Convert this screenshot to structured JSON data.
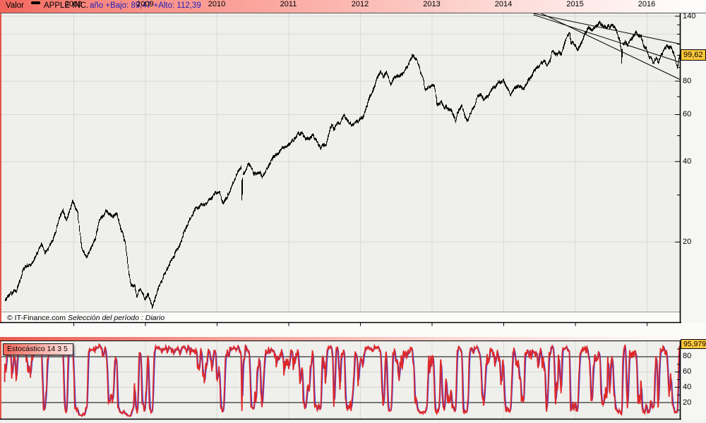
{
  "header": {
    "valor_label": "Valor",
    "instrument": "APPLE INC.",
    "year_range": "año +Bajo: 89,47 +Alto: 112,39"
  },
  "main_chart": {
    "price_label": "99,62",
    "copyright": "© IT-Finance.com",
    "period_label": "Selección del período : Diario",
    "y_axis_labels": [
      {
        "value": 140,
        "text": "140"
      },
      {
        "value": 80,
        "text": "80"
      },
      {
        "value": 60,
        "text": "60"
      },
      {
        "value": 40,
        "text": "40"
      },
      {
        "value": 20,
        "text": "20"
      }
    ]
  },
  "x_axis": {
    "years": [
      "2008",
      "2009",
      "2010",
      "2011",
      "2012",
      "2013",
      "2014",
      "2015",
      "2016"
    ]
  },
  "stochastic": {
    "legend": "Estocástico 14 3 5",
    "value_label": "95,979",
    "y_axis_labels": [
      {
        "value": 80,
        "text": "80"
      },
      {
        "value": 60,
        "text": "60"
      },
      {
        "value": 40,
        "text": "40"
      },
      {
        "value": 20,
        "text": "20"
      }
    ]
  },
  "colors": {
    "price": "#000000",
    "stoch_k_red": "#e02828",
    "stoch_d_blue": "#3535d6",
    "grid": "#d8d8d6",
    "grid_light": "#d2d2d0",
    "tag_bg": "#ffc83c",
    "border": "#000000"
  },
  "chart_data": [
    {
      "type": "line",
      "name": "APPLE INC. daily price (split-adjusted)",
      "period": "Diario",
      "y_scale": "log",
      "ylim": [
        10,
        150
      ],
      "y_grid_levels": [
        20,
        40,
        60,
        80,
        100,
        120,
        140
      ],
      "y_minor_ticks": [
        130,
        120,
        110,
        100,
        90,
        70,
        50,
        30
      ],
      "x_range_years": [
        2007.04,
        2016.462
      ],
      "last_price": 99.62,
      "year_low": 89.47,
      "year_high": 112.39,
      "anchors": [
        [
          2007.04,
          12.2
        ],
        [
          2007.2,
          13.3
        ],
        [
          2007.3,
          15.5
        ],
        [
          2007.45,
          17.5
        ],
        [
          2007.55,
          19.5
        ],
        [
          2007.6,
          18.0
        ],
        [
          2007.75,
          22.0
        ],
        [
          2007.85,
          26.5
        ],
        [
          2007.9,
          24.0
        ],
        [
          2007.99,
          28.4
        ],
        [
          2008.05,
          25.5
        ],
        [
          2008.08,
          22.0
        ],
        [
          2008.12,
          18.5
        ],
        [
          2008.18,
          17.3
        ],
        [
          2008.3,
          20.5
        ],
        [
          2008.38,
          24.5
        ],
        [
          2008.45,
          26.4
        ],
        [
          2008.55,
          24.8
        ],
        [
          2008.6,
          25.5
        ],
        [
          2008.65,
          22.5
        ],
        [
          2008.72,
          20.0
        ],
        [
          2008.76,
          16.0
        ],
        [
          2008.8,
          13.8
        ],
        [
          2008.85,
          13.9
        ],
        [
          2008.88,
          12.6
        ],
        [
          2008.93,
          13.5
        ],
        [
          2008.99,
          12.2
        ],
        [
          2009.04,
          13.0
        ],
        [
          2009.1,
          11.3
        ],
        [
          2009.15,
          12.7
        ],
        [
          2009.25,
          15.0
        ],
        [
          2009.4,
          18.0
        ],
        [
          2009.5,
          20.3
        ],
        [
          2009.6,
          23.5
        ],
        [
          2009.7,
          26.4
        ],
        [
          2009.8,
          27.5
        ],
        [
          2009.9,
          28.5
        ],
        [
          2009.99,
          30.1
        ],
        [
          2010.04,
          30.5
        ],
        [
          2010.09,
          27.7
        ],
        [
          2010.2,
          32.0
        ],
        [
          2010.3,
          37.0
        ],
        [
          2010.34,
          38.3
        ],
        [
          2010.347,
          28.8
        ],
        [
          2010.36,
          36.0
        ],
        [
          2010.45,
          39.0
        ],
        [
          2010.52,
          35.2
        ],
        [
          2010.6,
          36.8
        ],
        [
          2010.63,
          34.8
        ],
        [
          2010.7,
          37.5
        ],
        [
          2010.8,
          42.0
        ],
        [
          2010.9,
          45.0
        ],
        [
          2010.99,
          46.1
        ],
        [
          2011.1,
          49.0
        ],
        [
          2011.13,
          51.6
        ],
        [
          2011.25,
          48.8
        ],
        [
          2011.35,
          49.8
        ],
        [
          2011.45,
          45.5
        ],
        [
          2011.52,
          47.5
        ],
        [
          2011.55,
          50.0
        ],
        [
          2011.6,
          54.5
        ],
        [
          2011.63,
          52.0
        ],
        [
          2011.68,
          56.0
        ],
        [
          2011.72,
          54.0
        ],
        [
          2011.77,
          60.0
        ],
        [
          2011.82,
          56.3
        ],
        [
          2011.87,
          54.7
        ],
        [
          2011.92,
          56.5
        ],
        [
          2011.99,
          57.9
        ],
        [
          2012.05,
          60.5
        ],
        [
          2012.1,
          65.0
        ],
        [
          2012.2,
          77.0
        ],
        [
          2012.28,
          86.5
        ],
        [
          2012.32,
          83.0
        ],
        [
          2012.36,
          86.8
        ],
        [
          2012.42,
          77.8
        ],
        [
          2012.5,
          82.0
        ],
        [
          2012.57,
          85.0
        ],
        [
          2012.65,
          90.5
        ],
        [
          2012.72,
          100.3
        ],
        [
          2012.78,
          95.0
        ],
        [
          2012.82,
          90.0
        ],
        [
          2012.87,
          81.5
        ],
        [
          2012.9,
          74.0
        ],
        [
          2012.95,
          76.0
        ],
        [
          2012.99,
          76.5
        ],
        [
          2013.03,
          78.4
        ],
        [
          2013.07,
          65.0
        ],
        [
          2013.12,
          65.5
        ],
        [
          2013.2,
          63.0
        ],
        [
          2013.28,
          61.0
        ],
        [
          2013.33,
          56.5
        ],
        [
          2013.38,
          62.0
        ],
        [
          2013.42,
          64.5
        ],
        [
          2013.46,
          59.5
        ],
        [
          2013.49,
          56.0
        ],
        [
          2013.55,
          62.0
        ],
        [
          2013.62,
          67.0
        ],
        [
          2013.67,
          72.0
        ],
        [
          2013.72,
          69.0
        ],
        [
          2013.78,
          70.0
        ],
        [
          2013.82,
          74.5
        ],
        [
          2013.88,
          76.0
        ],
        [
          2013.92,
          79.5
        ],
        [
          2013.99,
          80.1
        ],
        [
          2014.05,
          77.0
        ],
        [
          2014.1,
          72.0
        ],
        [
          2014.2,
          76.5
        ],
        [
          2014.28,
          75.0
        ],
        [
          2014.35,
          81.5
        ],
        [
          2014.45,
          88.0
        ],
        [
          2014.52,
          92.8
        ],
        [
          2014.58,
          95.5
        ],
        [
          2014.62,
          94.0
        ],
        [
          2014.68,
          102.5
        ],
        [
          2014.73,
          98.5
        ],
        [
          2014.8,
          101.0
        ],
        [
          2014.88,
          117.0
        ],
        [
          2014.92,
          119.5
        ],
        [
          2014.94,
          111.5
        ],
        [
          2014.99,
          110.4
        ],
        [
          2015.03,
          106.0
        ],
        [
          2015.08,
          112.0
        ],
        [
          2015.13,
          119.0
        ],
        [
          2015.18,
          127.0
        ],
        [
          2015.23,
          123.0
        ],
        [
          2015.3,
          127.1
        ],
        [
          2015.35,
          130.5
        ],
        [
          2015.42,
          126.0
        ],
        [
          2015.45,
          130.0
        ],
        [
          2015.52,
          127.0
        ],
        [
          2015.55,
          124.5
        ],
        [
          2015.58,
          121.0
        ],
        [
          2015.62,
          114.5
        ],
        [
          2015.645,
          103.0
        ],
        [
          2015.649,
          93.0
        ],
        [
          2015.66,
          110.0
        ],
        [
          2015.7,
          112.5
        ],
        [
          2015.73,
          109.5
        ],
        [
          2015.78,
          114.0
        ],
        [
          2015.84,
          120.5
        ],
        [
          2015.88,
          118.0
        ],
        [
          2015.92,
          117.5
        ],
        [
          2015.96,
          107.0
        ],
        [
          2015.99,
          105.3
        ],
        [
          2016.03,
          99.0
        ],
        [
          2016.06,
          96.5
        ],
        [
          2016.1,
          94.0
        ],
        [
          2016.13,
          96.8
        ],
        [
          2016.16,
          94.5
        ],
        [
          2016.2,
          100.5
        ],
        [
          2016.25,
          105.0
        ],
        [
          2016.29,
          109.5
        ],
        [
          2016.32,
          110.5
        ],
        [
          2016.36,
          104.5
        ],
        [
          2016.39,
          97.5
        ],
        [
          2016.41,
          93.0
        ],
        [
          2016.425,
          90.0
        ],
        [
          2016.44,
          94.5
        ],
        [
          2016.462,
          99.62
        ]
      ],
      "trendlines": [
        {
          "from": [
            2014.42,
            143.5
          ],
          "to": [
            2016.46,
            110.3
          ]
        },
        {
          "from": [
            2014.42,
            141.8
          ],
          "to": [
            2016.46,
            94.3
          ]
        },
        {
          "from": [
            2014.53,
            143.5
          ],
          "to": [
            2016.46,
            81.3
          ]
        }
      ]
    },
    {
      "type": "line",
      "name": "Estocástico 14 3 5",
      "params": {
        "k_period": 14,
        "slowing": 3,
        "d_period": 5
      },
      "ylim": [
        0,
        100
      ],
      "overbought_oversold_levels": [
        80,
        20
      ],
      "gray_grid_levels": [
        60,
        40
      ],
      "y_minor_ticks": [
        90,
        70,
        50,
        30,
        10
      ],
      "last_value": 95.979,
      "series_colors": {
        "k_slow": "#e02828",
        "d": "#3535d6"
      }
    }
  ]
}
